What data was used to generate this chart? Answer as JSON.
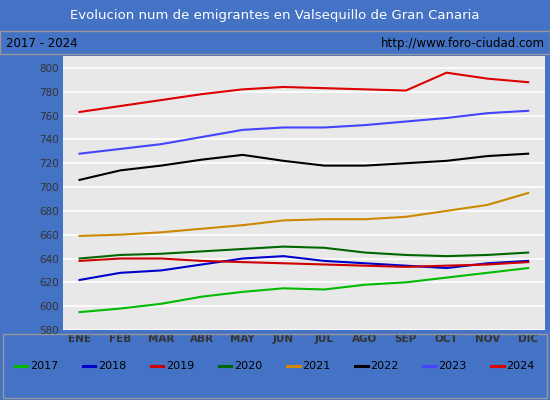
{
  "title": "Evolucion num de emigrantes en Valsequillo de Gran Canaria",
  "subtitle_left": "2017 - 2024",
  "subtitle_right": "http://www.foro-ciudad.com",
  "title_bg": "#4472c4",
  "title_color": "white",
  "plot_bg": "#e8e8e8",
  "fig_bg": "#4472c4",
  "months": [
    "ENE",
    "FEB",
    "MAR",
    "ABR",
    "MAY",
    "JUN",
    "JUL",
    "AGO",
    "SEP",
    "OCT",
    "NOV",
    "DIC"
  ],
  "ylim": [
    580,
    810
  ],
  "yticks": [
    580,
    600,
    620,
    640,
    660,
    680,
    700,
    720,
    740,
    760,
    780,
    800
  ],
  "series": {
    "2017": {
      "color": "#00bb00",
      "values": [
        595,
        598,
        602,
        608,
        612,
        615,
        614,
        618,
        620,
        624,
        628,
        632
      ]
    },
    "2018": {
      "color": "#0000cc",
      "values": [
        622,
        628,
        630,
        635,
        640,
        642,
        638,
        636,
        634,
        632,
        636,
        638
      ]
    },
    "2019": {
      "color": "#cc0000",
      "values": [
        638,
        640,
        640,
        638,
        637,
        636,
        635,
        634,
        633,
        634,
        635,
        637
      ]
    },
    "2020": {
      "color": "#006600",
      "values": [
        640,
        643,
        644,
        646,
        648,
        650,
        649,
        645,
        643,
        642,
        643,
        645
      ]
    },
    "2021": {
      "color": "#cc8800",
      "values": [
        659,
        660,
        662,
        665,
        668,
        672,
        673,
        673,
        675,
        680,
        685,
        695
      ]
    },
    "2022": {
      "color": "#000000",
      "values": [
        706,
        714,
        718,
        723,
        727,
        722,
        718,
        718,
        720,
        722,
        726,
        728
      ]
    },
    "2023": {
      "color": "#4444ff",
      "values": [
        728,
        732,
        736,
        742,
        748,
        750,
        750,
        752,
        755,
        758,
        762,
        764
      ]
    },
    "2024": {
      "color": "#dd0000",
      "values": [
        763,
        768,
        773,
        778,
        782,
        784,
        783,
        782,
        781,
        796,
        791,
        788
      ]
    }
  },
  "legend_order": [
    "2017",
    "2018",
    "2019",
    "2020",
    "2021",
    "2022",
    "2023",
    "2024"
  ]
}
